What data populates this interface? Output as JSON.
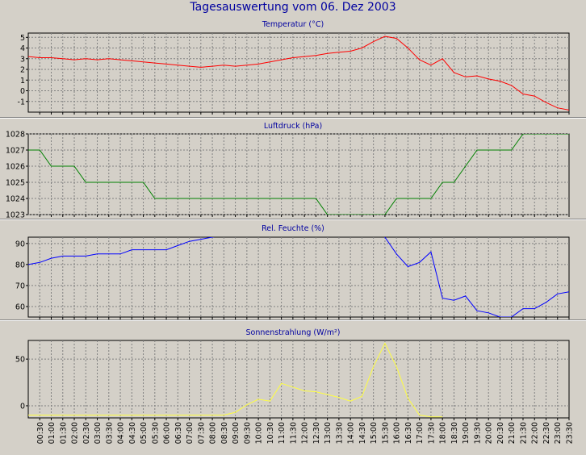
{
  "page": {
    "title": "Tagesauswertung vom 06. Dez 2003"
  },
  "x_labels": [
    "00:30",
    "01:00",
    "01:30",
    "02:00",
    "02:30",
    "03:00",
    "03:30",
    "04:00",
    "04:30",
    "05:00",
    "05:30",
    "06:00",
    "06:30",
    "07:00",
    "07:30",
    "08:00",
    "08:30",
    "09:00",
    "09:30",
    "10:00",
    "10:30",
    "11:00",
    "11:30",
    "12:00",
    "12:30",
    "13:00",
    "13:30",
    "14:00",
    "14:30",
    "15:00",
    "15:30",
    "16:00",
    "16:30",
    "17:00",
    "17:30",
    "18:00",
    "18:30",
    "19:00",
    "19:30",
    "20:00",
    "20:30",
    "21:00",
    "21:30",
    "22:00",
    "22:30",
    "23:00",
    "23:30"
  ],
  "chart_data": [
    {
      "type": "line",
      "title": "Temperatur (°C)",
      "color": "#ff0000",
      "ylim": [
        -2,
        5.4
      ],
      "yticks": [
        5,
        4,
        3,
        2,
        1,
        0,
        -1
      ],
      "points": [
        [
          "00:00",
          3.2
        ],
        [
          "00:30",
          3.1
        ],
        [
          "01:00",
          3.1
        ],
        [
          "01:30",
          3.0
        ],
        [
          "02:00",
          2.9
        ],
        [
          "02:30",
          3.0
        ],
        [
          "03:00",
          2.9
        ],
        [
          "03:30",
          3.0
        ],
        [
          "04:00",
          2.9
        ],
        [
          "04:30",
          2.8
        ],
        [
          "05:00",
          2.7
        ],
        [
          "05:30",
          2.6
        ],
        [
          "06:00",
          2.5
        ],
        [
          "06:30",
          2.4
        ],
        [
          "07:00",
          2.3
        ],
        [
          "07:30",
          2.2
        ],
        [
          "08:00",
          2.3
        ],
        [
          "08:30",
          2.4
        ],
        [
          "09:00",
          2.3
        ],
        [
          "09:30",
          2.4
        ],
        [
          "10:00",
          2.5
        ],
        [
          "10:30",
          2.7
        ],
        [
          "11:00",
          2.9
        ],
        [
          "11:30",
          3.1
        ],
        [
          "12:00",
          3.2
        ],
        [
          "12:30",
          3.3
        ],
        [
          "13:00",
          3.5
        ],
        [
          "13:30",
          3.6
        ],
        [
          "14:00",
          3.7
        ],
        [
          "14:30",
          4.0
        ],
        [
          "15:00",
          4.6
        ],
        [
          "15:30",
          5.1
        ],
        [
          "16:00",
          4.9
        ],
        [
          "16:30",
          4.0
        ],
        [
          "17:00",
          2.9
        ],
        [
          "17:30",
          2.4
        ],
        [
          "18:00",
          3.0
        ],
        [
          "18:30",
          1.7
        ],
        [
          "19:00",
          1.3
        ],
        [
          "19:30",
          1.4
        ],
        [
          "20:00",
          1.1
        ],
        [
          "20:30",
          0.9
        ],
        [
          "21:00",
          0.5
        ],
        [
          "21:30",
          -0.3
        ],
        [
          "22:00",
          -0.5
        ],
        [
          "22:30",
          -1.1
        ],
        [
          "23:00",
          -1.6
        ],
        [
          "23:30",
          -1.8
        ]
      ]
    },
    {
      "type": "line",
      "title": "Luftdruck (hPa)",
      "color": "#008000",
      "ylim": [
        1023,
        1028
      ],
      "yticks": [
        1028,
        1027,
        1026,
        1025,
        1024,
        1023
      ],
      "points": [
        [
          "00:00",
          1027
        ],
        [
          "00:30",
          1027
        ],
        [
          "01:00",
          1026
        ],
        [
          "01:30",
          1026
        ],
        [
          "02:00",
          1026
        ],
        [
          "02:30",
          1025
        ],
        [
          "03:00",
          1025
        ],
        [
          "03:30",
          1025
        ],
        [
          "04:00",
          1025
        ],
        [
          "04:30",
          1025
        ],
        [
          "05:00",
          1025
        ],
        [
          "05:30",
          1024
        ],
        [
          "06:00",
          1024
        ],
        [
          "06:30",
          1024
        ],
        [
          "07:00",
          1024
        ],
        [
          "07:30",
          1024
        ],
        [
          "08:00",
          1024
        ],
        [
          "08:30",
          1024
        ],
        [
          "09:00",
          1024
        ],
        [
          "09:30",
          1024
        ],
        [
          "10:00",
          1024
        ],
        [
          "10:30",
          1024
        ],
        [
          "11:00",
          1024
        ],
        [
          "11:30",
          1024
        ],
        [
          "12:00",
          1024
        ],
        [
          "12:30",
          1024
        ],
        [
          "13:00",
          1023
        ],
        [
          "13:30",
          1023
        ],
        [
          "14:00",
          1023
        ],
        [
          "14:30",
          1023
        ],
        [
          "15:00",
          1023
        ],
        [
          "15:30",
          1023
        ],
        [
          "16:00",
          1024
        ],
        [
          "16:30",
          1024
        ],
        [
          "17:00",
          1024
        ],
        [
          "17:30",
          1024
        ],
        [
          "18:00",
          1025
        ],
        [
          "18:30",
          1025
        ],
        [
          "19:00",
          1026
        ],
        [
          "19:30",
          1027
        ],
        [
          "20:00",
          1027
        ],
        [
          "20:30",
          1027
        ],
        [
          "21:00",
          1027
        ],
        [
          "21:30",
          1028
        ],
        [
          "22:00",
          1028
        ],
        [
          "22:30",
          1028
        ],
        [
          "23:00",
          1028
        ],
        [
          "23:30",
          1028
        ]
      ]
    },
    {
      "type": "line",
      "title": "Rel. Feuchte (%)",
      "color": "#0000ff",
      "ylim": [
        55,
        93
      ],
      "yticks": [
        90,
        80,
        70,
        60
      ],
      "points": [
        [
          "00:00",
          80
        ],
        [
          "00:30",
          81
        ],
        [
          "01:00",
          83
        ],
        [
          "01:30",
          84
        ],
        [
          "02:00",
          84
        ],
        [
          "02:30",
          84
        ],
        [
          "03:00",
          85
        ],
        [
          "03:30",
          85
        ],
        [
          "04:00",
          85
        ],
        [
          "04:30",
          87
        ],
        [
          "05:00",
          87
        ],
        [
          "05:30",
          87
        ],
        [
          "06:00",
          87
        ],
        [
          "06:30",
          89
        ],
        [
          "07:00",
          91
        ],
        [
          "07:30",
          92
        ],
        [
          "08:00",
          93
        ],
        [
          "08:30",
          94
        ],
        [
          "09:00",
          95
        ],
        [
          "09:30",
          96
        ],
        [
          "10:00",
          96
        ],
        [
          "10:30",
          96
        ],
        [
          "11:00",
          96
        ],
        [
          "11:30",
          96
        ],
        [
          "12:00",
          96
        ],
        [
          "12:30",
          96
        ],
        [
          "13:00",
          96
        ],
        [
          "13:30",
          96
        ],
        [
          "14:00",
          96
        ],
        [
          "14:30",
          96
        ],
        [
          "15:00",
          96
        ],
        [
          "15:30",
          93
        ],
        [
          "16:00",
          85
        ],
        [
          "16:30",
          79
        ],
        [
          "17:00",
          81
        ],
        [
          "17:30",
          86
        ],
        [
          "18:00",
          64
        ],
        [
          "18:30",
          63
        ],
        [
          "19:00",
          65
        ],
        [
          "19:30",
          58
        ],
        [
          "20:00",
          57
        ],
        [
          "20:30",
          55
        ],
        [
          "21:00",
          55
        ],
        [
          "21:30",
          59
        ],
        [
          "22:00",
          59
        ],
        [
          "22:30",
          62
        ],
        [
          "23:00",
          66
        ],
        [
          "23:30",
          67
        ]
      ]
    },
    {
      "type": "line",
      "title": "Sonnenstrahlung (W/m²)",
      "color": "#ffff40",
      "ylim": [
        -13,
        70
      ],
      "yticks": [
        50,
        0
      ],
      "points": [
        [
          "00:00",
          -10
        ],
        [
          "00:30",
          -10
        ],
        [
          "01:00",
          -10
        ],
        [
          "01:30",
          -10
        ],
        [
          "02:00",
          -10
        ],
        [
          "02:30",
          -10
        ],
        [
          "03:00",
          -10
        ],
        [
          "03:30",
          -10
        ],
        [
          "04:00",
          -10
        ],
        [
          "04:30",
          -10
        ],
        [
          "05:00",
          -10
        ],
        [
          "05:30",
          -10
        ],
        [
          "06:00",
          -10
        ],
        [
          "06:30",
          -10
        ],
        [
          "07:00",
          -10
        ],
        [
          "07:30",
          -10
        ],
        [
          "08:00",
          -10
        ],
        [
          "08:30",
          -10
        ],
        [
          "09:00",
          -7
        ],
        [
          "09:30",
          1
        ],
        [
          "10:00",
          7
        ],
        [
          "10:30",
          5
        ],
        [
          "11:00",
          24
        ],
        [
          "11:30",
          20
        ],
        [
          "12:00",
          16
        ],
        [
          "12:30",
          15
        ],
        [
          "13:00",
          12
        ],
        [
          "13:30",
          9
        ],
        [
          "14:00",
          5
        ],
        [
          "14:30",
          10
        ],
        [
          "15:00",
          42
        ],
        [
          "15:30",
          67
        ],
        [
          "16:00",
          42
        ],
        [
          "16:30",
          8
        ],
        [
          "17:00",
          -10
        ],
        [
          "17:30",
          -12
        ],
        [
          "18:00",
          -12
        ]
      ]
    }
  ]
}
